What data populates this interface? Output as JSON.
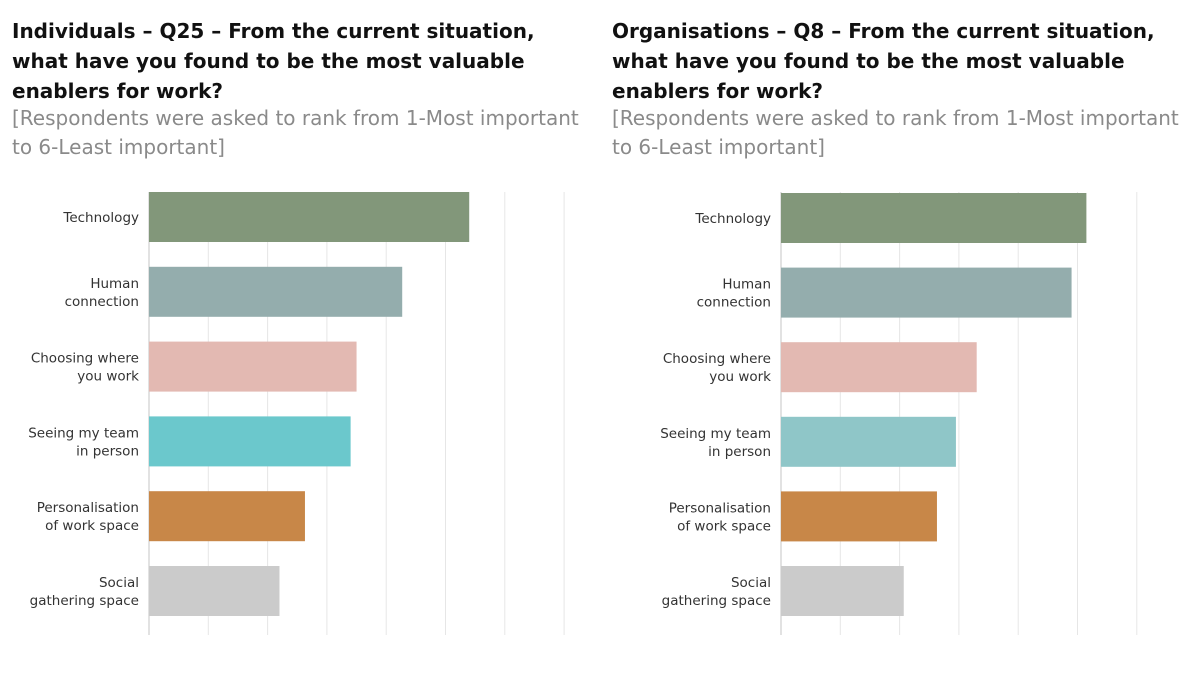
{
  "chart_data": [
    {
      "type": "bar",
      "orientation": "horizontal",
      "title": "Individuals – Q25 – From the current situation, what have you found to be the most valuable enablers for work?",
      "subtitle": "[Respondents were asked to rank from 1-Most important to 6-Least important]",
      "categories": [
        "Technology",
        "Human connection",
        "Choosing where you work",
        "Seeing my team in person",
        "Personalisation of work space",
        "Social gathering space"
      ],
      "category_lines": [
        [
          "Technology"
        ],
        [
          "Human",
          "connection"
        ],
        [
          "Choosing where",
          "you work"
        ],
        [
          "Seeing my team",
          "in person"
        ],
        [
          "Personalisation",
          "of work space"
        ],
        [
          "Social",
          "gathering space"
        ]
      ],
      "values": [
        5.4,
        4.27,
        3.5,
        3.4,
        2.63,
        2.2
      ],
      "xlim": [
        0,
        7
      ],
      "colors": [
        "#82977a",
        "#94adad",
        "#e3b9b2",
        "#6bc8cc",
        "#c88748",
        "#cbcbcb"
      ],
      "grid": true,
      "xlabel": "",
      "ylabel": ""
    },
    {
      "type": "bar",
      "orientation": "horizontal",
      "title": "Organisations – Q8 – From the current situation, what have you found to be the most valuable enablers for work?",
      "subtitle": "[Respondents were asked to rank from 1-Most important to 6-Least important]",
      "categories": [
        "Technology",
        "Human connection",
        "Choosing where you work",
        "Seeing my team in person",
        "Personalisation of work space",
        "Social gathering space"
      ],
      "category_lines": [
        [
          "Technology"
        ],
        [
          "Human",
          "connection"
        ],
        [
          "Choosing where",
          "you work"
        ],
        [
          "Seeing my team",
          "in person"
        ],
        [
          "Personalisation",
          "of work space"
        ],
        [
          "Social",
          "gathering space"
        ]
      ],
      "values": [
        5.15,
        4.9,
        3.3,
        2.95,
        2.63,
        2.07
      ],
      "xlim": [
        0,
        6
      ],
      "colors": [
        "#82977a",
        "#94adad",
        "#e3b9b2",
        "#8fc6c8",
        "#c88748",
        "#cbcbcb"
      ],
      "grid": true,
      "xlabel": "",
      "ylabel": ""
    }
  ]
}
